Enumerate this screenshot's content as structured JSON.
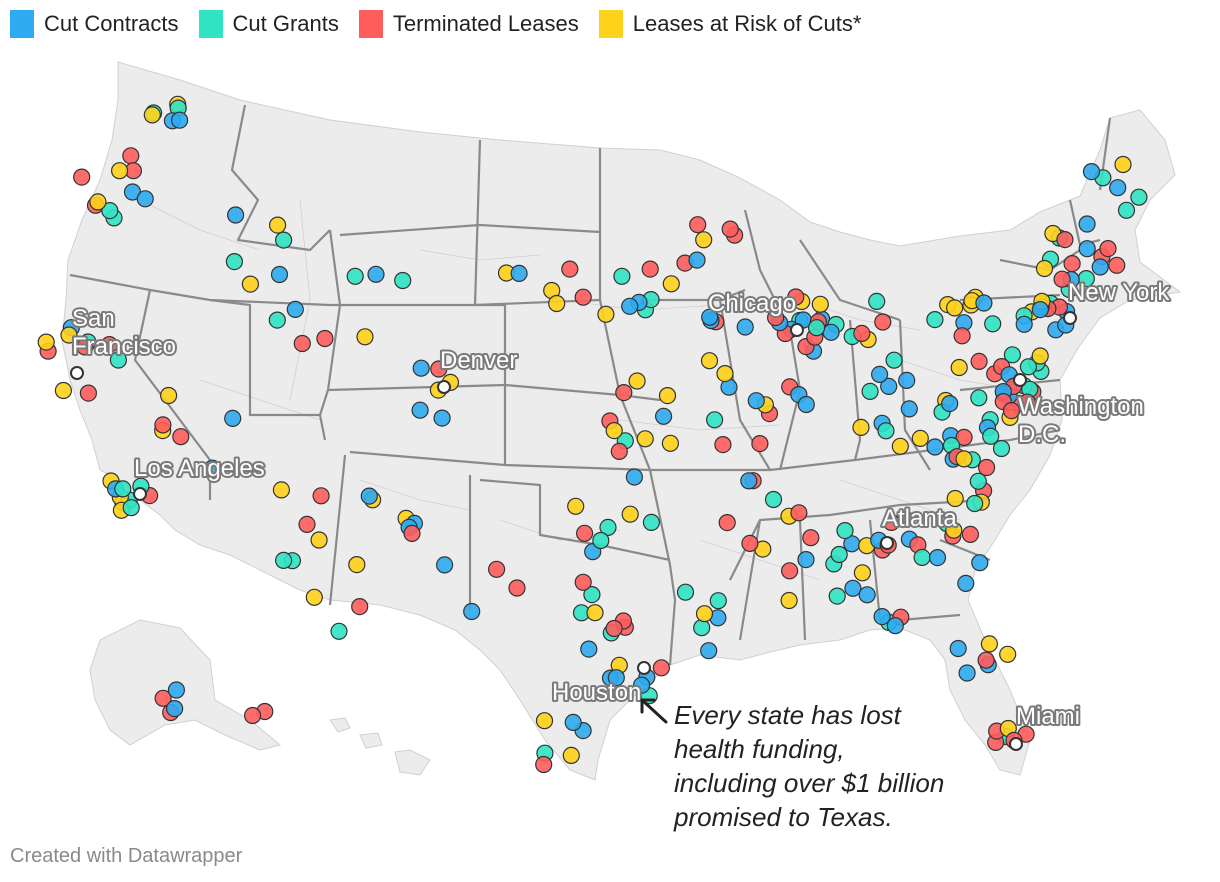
{
  "legend": [
    {
      "label": "Cut Contracts",
      "color": "#2eaaf0"
    },
    {
      "label": "Cut Grants",
      "color": "#2fe3c3"
    },
    {
      "label": "Terminated Leases",
      "color": "#ff5c5c"
    },
    {
      "label": "Leases at Risk of Cuts*",
      "color": "#ffd11a"
    }
  ],
  "cities": {
    "sf_line1": "San",
    "sf_line2": "Francisco",
    "la": "Los Angeles",
    "denver": "Denver",
    "chicago": "Chicago",
    "new_york": "New York",
    "dc_line1": "Washington",
    "dc_line2": "D.C.",
    "atlanta": "Atlanta",
    "houston": "Houston",
    "miami": "Miami"
  },
  "annotation": {
    "line1": "Every state has lost",
    "line2": "health funding,",
    "line3": "including over $1 billion",
    "line4": "promised to Texas."
  },
  "credit": "Created with Datawrapper",
  "colors": {
    "land": "#ececec",
    "border": "#8a8a8a",
    "county": "#c6c6c6",
    "marker_outline": "#333333"
  }
}
